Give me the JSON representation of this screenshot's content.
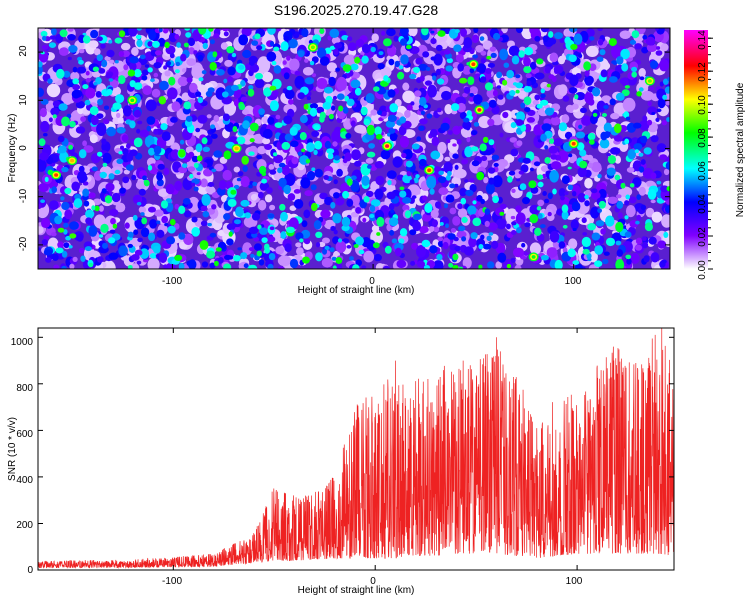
{
  "title": "S196.2025.270.19.47.G28",
  "chart_data": [
    {
      "type": "heatmap",
      "xlabel": "Height of straight line (km)",
      "ylabel": "Frequency (Hz)",
      "xlim": [
        -167,
        148
      ],
      "ylim": [
        -25,
        25
      ],
      "x_ticks": [
        -100,
        0,
        100
      ],
      "x_tick_labels": [
        "-100",
        "0",
        "100"
      ],
      "y_ticks": [
        -20,
        -10,
        0,
        10,
        20
      ],
      "y_tick_labels": [
        "-20",
        "-10",
        "0",
        "10",
        "20"
      ],
      "grid": false,
      "colorbar": {
        "label": "Normalized spectral amplitude",
        "range": [
          0,
          0.145
        ],
        "ticks": [
          0,
          0.02,
          0.04,
          0.06,
          0.08,
          0.1,
          0.12,
          0.14
        ],
        "tick_labels": [
          "0.00",
          "0.02",
          "0.04",
          "0.06",
          "0.08",
          "0.10",
          "0.12",
          "0.14"
        ],
        "colors": [
          "#ffffff",
          "#8000ff",
          "#0000ff",
          "#00ffff",
          "#00ff00",
          "#ffff00",
          "#ff0000",
          "#ff00ff"
        ]
      },
      "hotspots": [
        {
          "x": -158,
          "y": -5.5,
          "value": 0.12
        },
        {
          "x": -150,
          "y": -2.5,
          "value": 0.11
        },
        {
          "x": -68,
          "y": 0,
          "value": 0.11
        },
        {
          "x": 7,
          "y": 0.5,
          "value": 0.13
        },
        {
          "x": 28,
          "y": -4.5,
          "value": 0.12
        },
        {
          "x": 50,
          "y": 17.5,
          "value": 0.12
        },
        {
          "x": 53,
          "y": 8,
          "value": 0.13
        },
        {
          "x": 100,
          "y": 1,
          "value": 0.12
        },
        {
          "x": -30,
          "y": 21,
          "value": 0.09
        },
        {
          "x": 138,
          "y": 14,
          "value": 0.09
        },
        {
          "x": -120,
          "y": 10,
          "value": 0.08
        },
        {
          "x": 80,
          "y": -22.5,
          "value": 0.08
        }
      ]
    },
    {
      "type": "line",
      "xlabel": "Height of straight line (km)",
      "ylabel": "SNR (10 * v/v)",
      "xlim": [
        -167,
        148
      ],
      "ylim": [
        0,
        1040
      ],
      "x_ticks": [
        -100,
        0,
        100
      ],
      "x_tick_labels": [
        "-100",
        "0",
        "100"
      ],
      "y_ticks": [
        0,
        200,
        400,
        600,
        800,
        1000
      ],
      "y_tick_labels": [
        "0",
        "200",
        "400",
        "600",
        "800",
        "1000"
      ],
      "grid": false,
      "line_color": "#ee2222",
      "envelope": [
        {
          "x": -167,
          "low": 10,
          "high": 40
        },
        {
          "x": -120,
          "low": 10,
          "high": 45
        },
        {
          "x": -80,
          "low": 15,
          "high": 70
        },
        {
          "x": -60,
          "low": 30,
          "high": 160
        },
        {
          "x": -50,
          "low": 40,
          "high": 360
        },
        {
          "x": -40,
          "low": 40,
          "high": 320
        },
        {
          "x": -30,
          "low": 45,
          "high": 340
        },
        {
          "x": -20,
          "low": 50,
          "high": 420
        },
        {
          "x": -10,
          "low": 50,
          "high": 720
        },
        {
          "x": 0,
          "low": 50,
          "high": 760
        },
        {
          "x": 10,
          "low": 50,
          "high": 860
        },
        {
          "x": 20,
          "low": 60,
          "high": 820
        },
        {
          "x": 30,
          "low": 60,
          "high": 880
        },
        {
          "x": 40,
          "low": 70,
          "high": 880
        },
        {
          "x": 50,
          "low": 70,
          "high": 940
        },
        {
          "x": 60,
          "low": 70,
          "high": 1000
        },
        {
          "x": 70,
          "low": 60,
          "high": 880
        },
        {
          "x": 80,
          "low": 50,
          "high": 620
        },
        {
          "x": 90,
          "low": 60,
          "high": 760
        },
        {
          "x": 100,
          "low": 70,
          "high": 800
        },
        {
          "x": 110,
          "low": 70,
          "high": 900
        },
        {
          "x": 120,
          "low": 70,
          "high": 960
        },
        {
          "x": 130,
          "low": 70,
          "high": 960
        },
        {
          "x": 140,
          "low": 70,
          "high": 1040
        },
        {
          "x": 148,
          "low": 60,
          "high": 900
        }
      ],
      "peaks": [
        {
          "x": 10,
          "y": 900
        },
        {
          "x": 60,
          "y": 1000
        },
        {
          "x": 118,
          "y": 960
        },
        {
          "x": 142,
          "y": 1040
        }
      ]
    }
  ]
}
